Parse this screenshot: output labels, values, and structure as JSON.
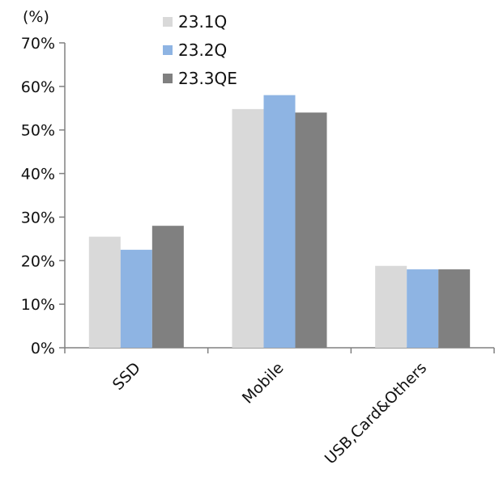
{
  "chart_data": {
    "type": "bar",
    "unit_label": "(%)",
    "categories": [
      "SSD",
      "Mobile",
      "USB,Card&Others"
    ],
    "series": [
      {
        "name": "23.1Q",
        "color": "#d9d9d9",
        "values": [
          25.5,
          54.8,
          18.8
        ]
      },
      {
        "name": "23.2Q",
        "color": "#8eb4e3",
        "values": [
          22.5,
          58.0,
          18.0
        ]
      },
      {
        "name": "23.3QE",
        "color": "#808080",
        "values": [
          28.0,
          54.0,
          18.0
        ]
      }
    ],
    "yticks": [
      "0%",
      "10%",
      "20%",
      "30%",
      "40%",
      "50%",
      "60%",
      "70%"
    ],
    "ylim": [
      0,
      70
    ],
    "grid": false,
    "legend_position": "top-center"
  }
}
